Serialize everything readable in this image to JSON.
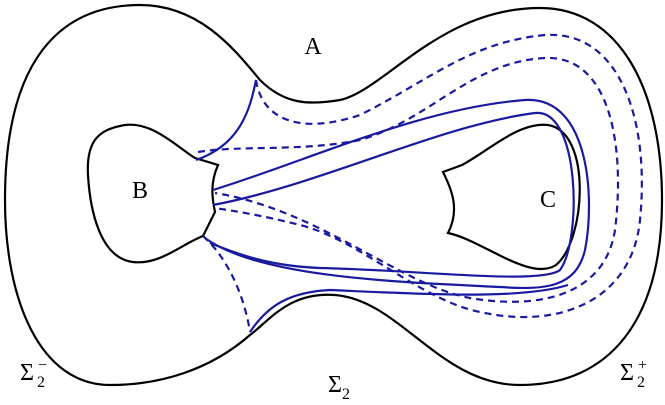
{
  "labels": {
    "a": "A",
    "b": "B",
    "c": "C",
    "sigma": {
      "base": "Σ",
      "sub": "2"
    },
    "sigma_minus": {
      "base": "Σ",
      "sub": "2",
      "sup": "−"
    },
    "sigma_plus": {
      "base": "Σ",
      "sub": "2",
      "sup": "+"
    }
  }
}
